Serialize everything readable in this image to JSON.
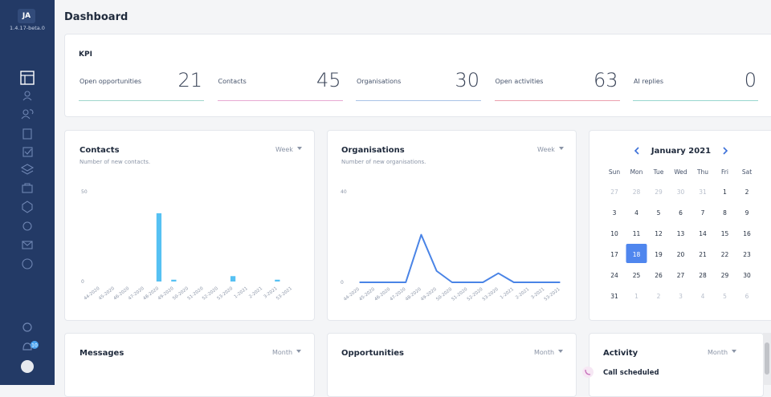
{
  "sidebar": {
    "initials": "JA",
    "version": "1.4.17-beta.0",
    "notification_count": 10
  },
  "header": {
    "title": "Dashboard"
  },
  "kpi": {
    "title": "KPI",
    "items": [
      {
        "label": "Open opportunities",
        "value": 21,
        "color": "#9fd6cc"
      },
      {
        "label": "Contacts",
        "value": 45,
        "color": "#e7a9d3"
      },
      {
        "label": "Organisations",
        "value": 30,
        "color": "#a8c3e6"
      },
      {
        "label": "Open activities",
        "value": 63,
        "color": "#ec9fae"
      },
      {
        "label": "AI replies",
        "value": 0,
        "color": "#97d6cf"
      }
    ]
  },
  "chart_data": [
    {
      "type": "bar",
      "title": "Contacts",
      "subtitle": "Number of new contacts.",
      "period": "Week",
      "categories": [
        "44-2020",
        "45-2020",
        "46-2020",
        "47-2020",
        "48-2020",
        "49-2020",
        "50-2020",
        "51-2020",
        "52-2020",
        "53-2020",
        "1-2021",
        "2-2021",
        "3-2021",
        "53-2021"
      ],
      "values": [
        0,
        0,
        0,
        0,
        38,
        1,
        0,
        0,
        0,
        3,
        0,
        0,
        1,
        0
      ],
      "color": "#56c1f3",
      "ylim": [
        0,
        50
      ],
      "yticks": [
        0,
        50
      ]
    },
    {
      "type": "line",
      "title": "Organisations",
      "subtitle": "Number of new organisations.",
      "period": "Week",
      "categories": [
        "44-2020",
        "45-2020",
        "46-2020",
        "47-2020",
        "48-2020",
        "49-2020",
        "50-2020",
        "51-2020",
        "52-2020",
        "53-2020",
        "1-2021",
        "2-2021",
        "3-2021",
        "53-2021"
      ],
      "values": [
        0,
        0,
        0,
        0,
        21,
        5,
        0,
        0,
        0,
        4,
        0,
        0,
        0,
        0
      ],
      "color": "#4a84e6",
      "ylim": [
        0,
        40
      ],
      "yticks": [
        0,
        40
      ]
    }
  ],
  "calendar": {
    "month": "January 2021",
    "weekdays": [
      "Sun",
      "Mon",
      "Tue",
      "Wed",
      "Thu",
      "Fri",
      "Sat"
    ],
    "weeks": [
      [
        27,
        28,
        29,
        30,
        31,
        1,
        2
      ],
      [
        3,
        4,
        5,
        6,
        7,
        8,
        9
      ],
      [
        10,
        11,
        12,
        13,
        14,
        15,
        16
      ],
      [
        17,
        18,
        19,
        20,
        21,
        22,
        23
      ],
      [
        24,
        25,
        26,
        27,
        28,
        29,
        30
      ],
      [
        31,
        1,
        2,
        3,
        4,
        5,
        6
      ]
    ],
    "selected_day": 18
  },
  "bottom_cards": [
    {
      "title": "Messages",
      "period": "Month"
    },
    {
      "title": "Opportunities",
      "period": "Month"
    },
    {
      "title": "Activity",
      "period": "Month",
      "items": [
        "Call scheduled"
      ]
    }
  ]
}
